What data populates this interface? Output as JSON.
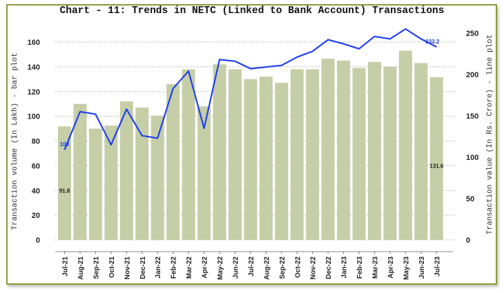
{
  "chart_data": {
    "type": "bar+line",
    "title": "Chart - 11: Trends in NETC (Linked to Bank Account) Transactions",
    "xlabel": "",
    "ylabel_left": "Transaction volume (In Lakh) - bar plot",
    "ylabel_right": "Transaction value (In Rs. Crore) - line plot",
    "ylim_left": [
      0,
      160
    ],
    "ylim_right": [
      0,
      250
    ],
    "yticks_left": [
      0,
      20,
      40,
      60,
      80,
      100,
      120,
      140,
      160
    ],
    "yticks_right": [
      0,
      50,
      100,
      150,
      200,
      250
    ],
    "grid": "horizontal dotted",
    "categories": [
      "Jul-21",
      "Aug-21",
      "Sep-21",
      "Oct-21",
      "Nov-21",
      "Dec-21",
      "Jan-22",
      "Feb-22",
      "Mar-22",
      "Apr-22",
      "May-22",
      "Jun-22",
      "Jul-22",
      "Aug-22",
      "Sep-22",
      "Oct-22",
      "Nov-22",
      "Dec-22",
      "Jan-23",
      "Feb-23",
      "Mar-23",
      "Apr-23",
      "May-23",
      "Jun-23",
      "Jul-23"
    ],
    "series": [
      {
        "name": "Transaction volume (In Lakh)",
        "type": "bar",
        "axis": "left",
        "color": "#c5cea6",
        "values": [
          91.8,
          110,
          90,
          92.5,
          112,
          107,
          100.5,
          126,
          138,
          108,
          142,
          138,
          130,
          132,
          127,
          138,
          138,
          146.5,
          145,
          139,
          144,
          140,
          153,
          143,
          131.6
        ]
      },
      {
        "name": "Transaction value (In Rs. Crore)",
        "type": "line",
        "axis": "right",
        "color": "#1f3ff0",
        "values": [
          109,
          155,
          152,
          115,
          158,
          126,
          123,
          183,
          204,
          135,
          218,
          216,
          207,
          209,
          211,
          221,
          228,
          242,
          237,
          231,
          246,
          243,
          255,
          243,
          233.2
        ]
      }
    ],
    "annotations": [
      {
        "text": "91.8",
        "series": "bar",
        "category": "Jul-21"
      },
      {
        "text": "109",
        "series": "line",
        "category": "Jul-21"
      },
      {
        "text": "131.6",
        "series": "bar",
        "category": "Jul-23"
      },
      {
        "text": "233.2",
        "series": "line",
        "category": "Jul-23"
      }
    ]
  }
}
